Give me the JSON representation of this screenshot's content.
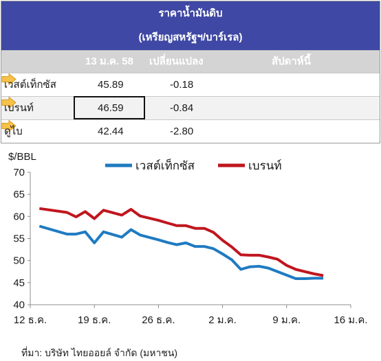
{
  "table": {
    "title": "ราคาน้ำมันดิบ",
    "subtitle": "(เหรียญสหรัฐฯ/บาร์เรล)",
    "col_date": "13 ม.ค. 58",
    "col_change": "เปลี่ยนแปลง",
    "col_weekly": "สัปดาห์นี้",
    "rows": [
      {
        "name": "เวสต์เท็กซัส",
        "price": "45.89",
        "change": "-0.18",
        "trend_icon": "right-arrow-icon"
      },
      {
        "name": "เบรนท์",
        "price": "46.59",
        "change": "-0.84",
        "trend_icon": "right-arrow-icon"
      },
      {
        "name": "ดูไบ",
        "price": "42.44",
        "change": "-2.80",
        "trend_icon": "right-arrow-icon"
      }
    ]
  },
  "chart_data": {
    "type": "line",
    "ylabel": "$/BBL",
    "ylim": [
      40,
      70
    ],
    "yticks": [
      40,
      45,
      50,
      55,
      60,
      65,
      70
    ],
    "xlim": [
      0,
      35
    ],
    "xticks": [
      {
        "x": 0,
        "label": "12 ธ.ค."
      },
      {
        "x": 7,
        "label": "19 ธ.ค."
      },
      {
        "x": 14,
        "label": "26 ธ.ค."
      },
      {
        "x": 21,
        "label": "2 ม.ค."
      },
      {
        "x": 28,
        "label": "9 ม.ค."
      },
      {
        "x": 35,
        "label": "16 ม.ค."
      }
    ],
    "legend_position": "top",
    "series": [
      {
        "name": "เวสต์เท็กซัส",
        "color": "#1f7bc1",
        "x": [
          1,
          4,
          5,
          6,
          7,
          8,
          10,
          11,
          12,
          14,
          15,
          16,
          17,
          18,
          19,
          20,
          21,
          22,
          23,
          24,
          25,
          26,
          27,
          28,
          29,
          30,
          31,
          32
        ],
        "values": [
          57.8,
          56.0,
          56.0,
          56.5,
          54.0,
          56.5,
          55.3,
          57.0,
          55.8,
          54.7,
          54.1,
          53.6,
          54.0,
          53.2,
          53.2,
          52.7,
          51.5,
          50.2,
          48.0,
          48.6,
          48.7,
          48.3,
          47.5,
          46.7,
          45.9,
          45.9,
          46.0,
          46.0
        ]
      },
      {
        "name": "เบรนท์",
        "color": "#c0161e",
        "x": [
          1,
          4,
          5,
          6,
          7,
          8,
          10,
          11,
          12,
          14,
          15,
          16,
          17,
          18,
          19,
          20,
          21,
          22,
          23,
          24,
          25,
          26,
          27,
          28,
          29,
          30,
          31,
          32
        ],
        "values": [
          61.8,
          60.9,
          59.9,
          61.1,
          59.5,
          61.4,
          60.3,
          61.6,
          60.1,
          59.1,
          58.5,
          57.9,
          57.9,
          57.3,
          57.3,
          56.4,
          54.6,
          53.1,
          51.3,
          51.2,
          51.2,
          50.8,
          50.3,
          48.9,
          48.0,
          47.5,
          47.0,
          46.6
        ]
      }
    ]
  },
  "source": "ที่มา: บริษัท ไทยออยล์ จำกัด (มหาชน)"
}
